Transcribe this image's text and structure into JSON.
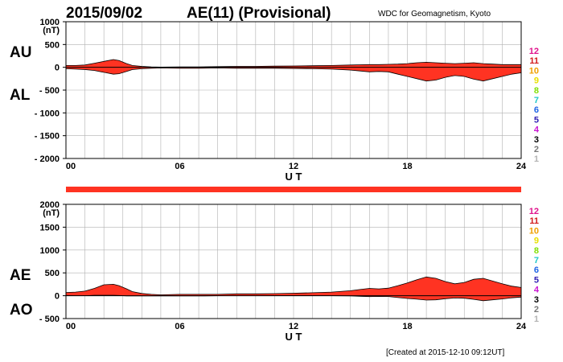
{
  "header": {
    "date": "2015/09/02",
    "title": "AE(11) (Provisional)",
    "source": "WDC for Geomagnetism, Kyoto"
  },
  "footer": {
    "created": "[Created at 2015-12-10 09:12UT]"
  },
  "station_levels": [
    "12",
    "11",
    "10",
    "9",
    "8",
    "7",
    "6",
    "5",
    "4",
    "3",
    "2",
    "1"
  ],
  "station_colors": [
    "#e0148c",
    "#d21a1a",
    "#f0a000",
    "#e8e000",
    "#80e000",
    "#20c8c8",
    "#1e64e6",
    "#3020b4",
    "#c814d2",
    "#000000",
    "#787878",
    "#b4b4b4"
  ],
  "fill_color": "#ff3322",
  "chart_data": [
    {
      "type": "area",
      "panel": "AU/AL",
      "side_labels": [
        "AU",
        "AL"
      ],
      "unit": "(nT)",
      "xlabel": "U T",
      "xlim": [
        0,
        24
      ],
      "ylim": [
        -2000,
        1000
      ],
      "xticks": [
        0,
        6,
        12,
        18,
        24
      ],
      "xtick_labels": [
        "00",
        "06",
        "12",
        "18",
        "24"
      ],
      "yticks": [
        1000,
        500,
        0,
        -500,
        -1000,
        -1500,
        -2000
      ],
      "ytick_labels": [
        "1000",
        "500",
        "0",
        "- 500",
        "- 1000",
        "- 1500",
        "- 2000"
      ],
      "grid": true,
      "x": [
        0,
        0.5,
        1,
        1.5,
        2,
        2.5,
        2.8,
        3.2,
        3.5,
        4,
        4.5,
        5,
        6,
        7,
        8,
        9,
        10,
        11,
        12,
        13,
        14,
        15,
        15.5,
        16,
        16.5,
        17,
        17.5,
        18,
        18.5,
        19,
        19.5,
        20,
        20.5,
        21,
        21.5,
        22,
        22.5,
        23,
        23.5,
        24
      ],
      "series": [
        {
          "name": "AU",
          "values": [
            40,
            40,
            50,
            90,
            130,
            170,
            150,
            80,
            40,
            20,
            10,
            5,
            10,
            10,
            15,
            20,
            20,
            25,
            30,
            35,
            40,
            50,
            55,
            60,
            60,
            65,
            70,
            80,
            100,
            110,
            100,
            90,
            80,
            90,
            100,
            80,
            70,
            60,
            60,
            60
          ]
        },
        {
          "name": "AL",
          "values": [
            -30,
            -40,
            -50,
            -70,
            -110,
            -150,
            -140,
            -90,
            -50,
            -30,
            -20,
            -15,
            -20,
            -20,
            -15,
            -20,
            -20,
            -20,
            -25,
            -30,
            -40,
            -60,
            -80,
            -100,
            -90,
            -100,
            -150,
            -200,
            -250,
            -300,
            -280,
            -220,
            -180,
            -200,
            -260,
            -300,
            -250,
            -200,
            -150,
            -120
          ]
        }
      ]
    },
    {
      "type": "area",
      "panel": "AE/AO",
      "side_labels": [
        "AE",
        "AO"
      ],
      "unit": "(nT)",
      "xlabel": "U T",
      "xlim": [
        0,
        24
      ],
      "ylim": [
        -500,
        2000
      ],
      "xticks": [
        0,
        6,
        12,
        18,
        24
      ],
      "xtick_labels": [
        "00",
        "06",
        "12",
        "18",
        "24"
      ],
      "yticks": [
        2000,
        1500,
        1000,
        500,
        0,
        -500
      ],
      "ytick_labels": [
        "2000",
        "1500",
        "1000",
        "500",
        "0",
        "- 500"
      ],
      "grid": true,
      "x": [
        0,
        0.5,
        1,
        1.5,
        2,
        2.5,
        2.8,
        3.2,
        3.5,
        4,
        4.5,
        5,
        6,
        7,
        8,
        9,
        10,
        11,
        12,
        13,
        14,
        15,
        15.5,
        16,
        16.5,
        17,
        17.5,
        18,
        18.5,
        19,
        19.5,
        20,
        20.5,
        21,
        21.5,
        22,
        22.5,
        23,
        23.5,
        24
      ],
      "series": [
        {
          "name": "AE",
          "values": [
            70,
            80,
            100,
            160,
            240,
            250,
            220,
            150,
            90,
            50,
            30,
            20,
            30,
            30,
            30,
            40,
            40,
            45,
            55,
            65,
            80,
            110,
            135,
            160,
            150,
            165,
            220,
            280,
            350,
            410,
            380,
            310,
            260,
            290,
            360,
            380,
            320,
            260,
            210,
            180
          ]
        },
        {
          "name": "AO",
          "values": [
            5,
            0,
            0,
            10,
            10,
            10,
            5,
            -5,
            -5,
            -5,
            -5,
            -5,
            -5,
            -5,
            0,
            0,
            0,
            2,
            2,
            2,
            0,
            -5,
            -12,
            -20,
            -15,
            -17,
            -40,
            -60,
            -75,
            -95,
            -90,
            -65,
            -50,
            -55,
            -80,
            -110,
            -90,
            -70,
            -45,
            -30
          ]
        }
      ]
    }
  ]
}
